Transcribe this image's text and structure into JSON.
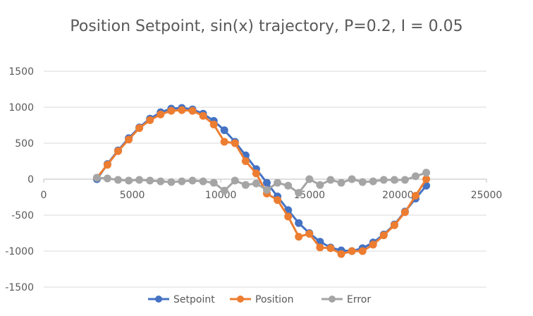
{
  "chart_data": {
    "type": "line",
    "title": "Position Setpoint, sin(x) trajectory, P=0.2, I = 0.05",
    "xlabel": "",
    "ylabel": "",
    "xlim": [
      0,
      25000
    ],
    "ylim": [
      -1500,
      1500
    ],
    "x_ticks": [
      0,
      5000,
      10000,
      15000,
      20000,
      25000
    ],
    "y_ticks": [
      1500,
      1000,
      500,
      0,
      -500,
      -1000,
      -1500
    ],
    "grid": "horizontal",
    "legend": "bottom",
    "series": [
      {
        "name": "Setpoint",
        "color": "#4472c4",
        "points": [
          [
            3000,
            0
          ],
          [
            3600,
            210
          ],
          [
            4200,
            400
          ],
          [
            4800,
            570
          ],
          [
            5400,
            720
          ],
          [
            6000,
            840
          ],
          [
            6600,
            930
          ],
          [
            7200,
            980
          ],
          [
            7800,
            990
          ],
          [
            8400,
            970
          ],
          [
            9000,
            910
          ],
          [
            9600,
            810
          ],
          [
            10200,
            680
          ],
          [
            10800,
            520
          ],
          [
            11400,
            330
          ],
          [
            12000,
            140
          ],
          [
            12600,
            -50
          ],
          [
            13200,
            -240
          ],
          [
            13800,
            -430
          ],
          [
            14400,
            -610
          ],
          [
            15000,
            -750
          ],
          [
            15600,
            -870
          ],
          [
            16200,
            -950
          ],
          [
            16800,
            -990
          ],
          [
            17400,
            -1000
          ],
          [
            18000,
            -960
          ],
          [
            18600,
            -880
          ],
          [
            19200,
            -770
          ],
          [
            19800,
            -630
          ],
          [
            20400,
            -450
          ],
          [
            21000,
            -270
          ],
          [
            21600,
            -90
          ]
        ]
      },
      {
        "name": "Position",
        "color": "#ed7d31",
        "points": [
          [
            3000,
            20
          ],
          [
            3600,
            200
          ],
          [
            4200,
            390
          ],
          [
            4800,
            550
          ],
          [
            5400,
            710
          ],
          [
            6000,
            820
          ],
          [
            6600,
            900
          ],
          [
            7200,
            950
          ],
          [
            7800,
            960
          ],
          [
            8400,
            950
          ],
          [
            9000,
            880
          ],
          [
            9600,
            760
          ],
          [
            10200,
            520
          ],
          [
            10800,
            500
          ],
          [
            11400,
            250
          ],
          [
            12000,
            80
          ],
          [
            12600,
            -200
          ],
          [
            13200,
            -290
          ],
          [
            13800,
            -520
          ],
          [
            14400,
            -800
          ],
          [
            15000,
            -760
          ],
          [
            15600,
            -950
          ],
          [
            16200,
            -960
          ],
          [
            16800,
            -1040
          ],
          [
            17400,
            -1000
          ],
          [
            18000,
            -1000
          ],
          [
            18600,
            -910
          ],
          [
            19200,
            -780
          ],
          [
            19800,
            -640
          ],
          [
            20400,
            -460
          ],
          [
            21000,
            -230
          ],
          [
            21600,
            0
          ]
        ]
      },
      {
        "name": "Error",
        "color": "#a5a5a5",
        "points": [
          [
            3000,
            20
          ],
          [
            3600,
            10
          ],
          [
            4200,
            -10
          ],
          [
            4800,
            -20
          ],
          [
            5400,
            -10
          ],
          [
            6000,
            -20
          ],
          [
            6600,
            -30
          ],
          [
            7200,
            -40
          ],
          [
            7800,
            -30
          ],
          [
            8400,
            -20
          ],
          [
            9000,
            -30
          ],
          [
            9600,
            -50
          ],
          [
            10200,
            -160
          ],
          [
            10800,
            -20
          ],
          [
            11400,
            -80
          ],
          [
            12000,
            -60
          ],
          [
            12600,
            -150
          ],
          [
            13200,
            -50
          ],
          [
            13800,
            -90
          ],
          [
            14400,
            -190
          ],
          [
            15000,
            0
          ],
          [
            15600,
            -80
          ],
          [
            16200,
            -10
          ],
          [
            16800,
            -50
          ],
          [
            17400,
            0
          ],
          [
            18000,
            -40
          ],
          [
            18600,
            -30
          ],
          [
            19200,
            -10
          ],
          [
            19800,
            -10
          ],
          [
            20400,
            -10
          ],
          [
            21000,
            40
          ],
          [
            21600,
            90
          ]
        ]
      }
    ]
  }
}
